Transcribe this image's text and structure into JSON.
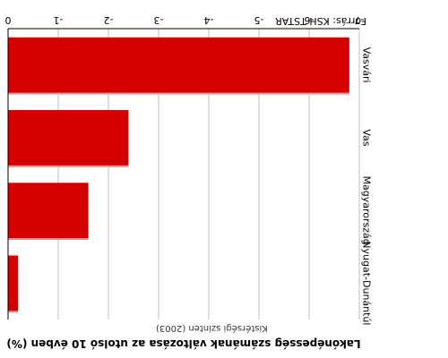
{
  "chart_data": {
    "type": "bar",
    "orientation": "horizontal",
    "rendered_rotated_180": true,
    "title": "Lakónépesség számának változása az utolsó 10 évben (%)",
    "subtitle": "Kistérségi szinten (2003)",
    "source": "Forrás: KSH TSTAR",
    "categories": [
      "Vasvári",
      "Vas",
      "Magyarország",
      "Nyugat-Dunántúl"
    ],
    "values": [
      -6.8,
      -2.4,
      -1.6,
      -0.2
    ],
    "xlim": [
      -7,
      0
    ],
    "ticks": [
      -7,
      -6,
      -5,
      -4,
      -3,
      -2,
      -1,
      0
    ],
    "tick_labels": [
      "-7",
      "-6",
      "-5",
      "-4",
      "-3",
      "-2",
      "-1",
      "0"
    ],
    "grid": true,
    "colors": {
      "bar": "#d40000",
      "bar_shadow": "#ee8a8a",
      "grid": "#bdbdbd"
    }
  }
}
